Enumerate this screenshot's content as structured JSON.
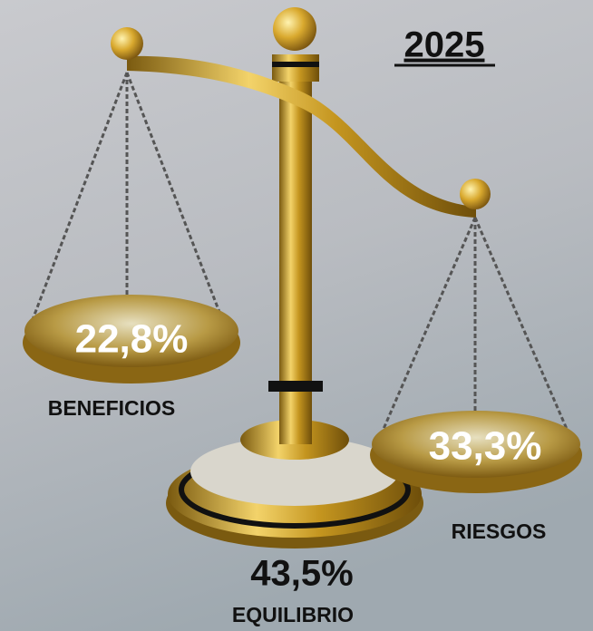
{
  "header": {
    "title": "2025"
  },
  "items": [
    {
      "value": "22,8%",
      "label": "BENEFICIOS"
    },
    {
      "value": "33,3%",
      "label": "RIESGOS"
    },
    {
      "value": "43,5%",
      "label": "EQUILIBRIO"
    }
  ]
}
